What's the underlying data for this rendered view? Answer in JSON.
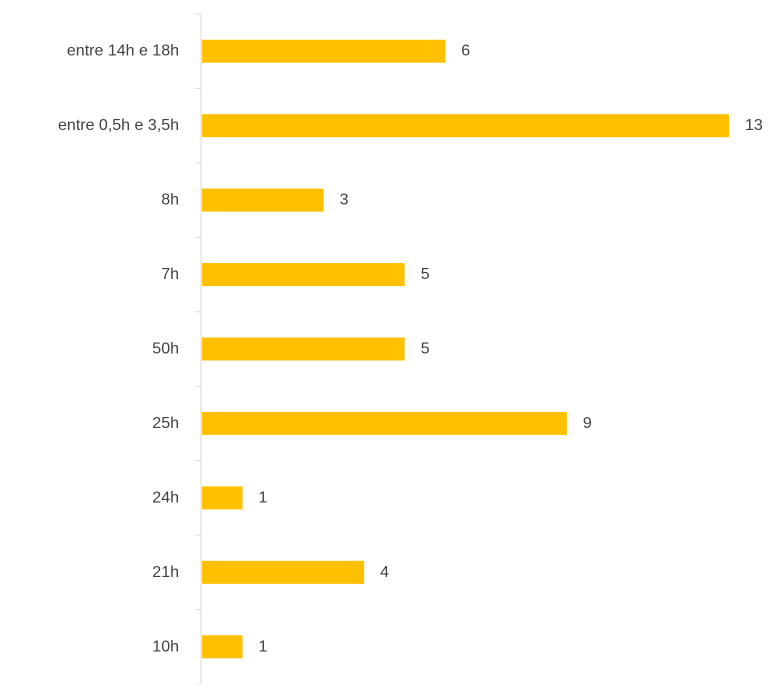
{
  "chart_data": {
    "type": "bar",
    "orientation": "horizontal",
    "title": "",
    "xlabel": "",
    "ylabel": "",
    "categories": [
      "entre 14h e 18h",
      "entre 0,5h e 3,5h",
      "8h",
      "7h",
      "50h",
      "25h",
      "24h",
      "21h",
      "10h"
    ],
    "values": [
      6,
      13,
      3,
      5,
      5,
      9,
      1,
      4,
      1
    ],
    "xlim": [
      0,
      13
    ],
    "bar_color": "#FFC000",
    "axis_color": "#D9D9D9",
    "text_color": "#404040",
    "grid": false,
    "data_labels": true,
    "legend": "none"
  }
}
